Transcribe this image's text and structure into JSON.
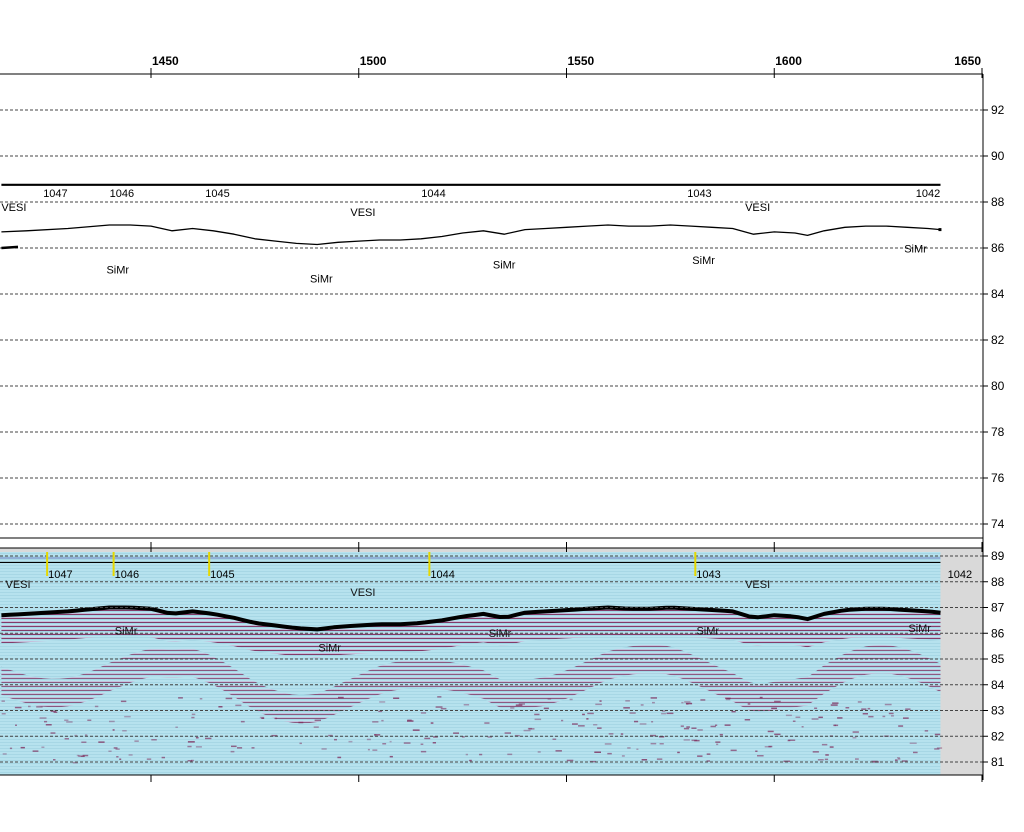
{
  "chart_data": [
    {
      "type": "line",
      "name": "profile-panel",
      "x_ticks": [
        1450,
        1500,
        1550,
        1600,
        1650
      ],
      "y_ticks": [
        92,
        90,
        88,
        86,
        84,
        82,
        80,
        78,
        76,
        74
      ],
      "xlim": [
        1414,
        1650
      ],
      "ylim": [
        73,
        94
      ],
      "grid": "horizontal dashed",
      "series": [
        {
          "role": "water-surface",
          "x": [
            1414,
            1640
          ],
          "y": [
            88.75,
            88.75
          ]
        },
        {
          "role": "bottom",
          "x": [
            1414,
            1420,
            1430,
            1440,
            1445,
            1450,
            1455,
            1460,
            1465,
            1470,
            1475,
            1480,
            1485,
            1490,
            1495,
            1500,
            1505,
            1510,
            1515,
            1520,
            1525,
            1530,
            1535,
            1540,
            1545,
            1550,
            1555,
            1560,
            1565,
            1570,
            1575,
            1580,
            1585,
            1590,
            1595,
            1600,
            1605,
            1608,
            1612,
            1617,
            1622,
            1627,
            1632,
            1637,
            1640
          ],
          "y": [
            86.7,
            86.75,
            86.85,
            87.0,
            87.0,
            86.95,
            86.75,
            86.85,
            86.75,
            86.6,
            86.4,
            86.3,
            86.2,
            86.15,
            86.25,
            86.3,
            86.35,
            86.35,
            86.4,
            86.5,
            86.65,
            86.75,
            86.6,
            86.8,
            86.85,
            86.9,
            86.95,
            87.0,
            86.95,
            86.95,
            87.0,
            86.95,
            86.9,
            86.85,
            86.6,
            86.7,
            86.65,
            86.55,
            86.75,
            86.9,
            86.95,
            86.95,
            86.9,
            86.85,
            86.8
          ]
        },
        {
          "role": "left-fragment",
          "x": [
            1414,
            1418
          ],
          "y": [
            86.0,
            86.05
          ]
        }
      ],
      "station_labels": [
        {
          "text": "1047",
          "x": 1427
        },
        {
          "text": "1046",
          "x": 1443
        },
        {
          "text": "1045",
          "x": 1466
        },
        {
          "text": "1044",
          "x": 1518
        },
        {
          "text": "1043",
          "x": 1582
        },
        {
          "text": "1042",
          "x": 1637
        }
      ],
      "layer_labels": [
        {
          "text": "VESI",
          "x": 1417,
          "y": 87.6
        },
        {
          "text": "VESI",
          "x": 1501,
          "y": 87.4
        },
        {
          "text": "VESI",
          "x": 1596,
          "y": 87.6
        },
        {
          "text": "SiMr",
          "x": 1442,
          "y": 84.9
        },
        {
          "text": "SiMr",
          "x": 1491,
          "y": 84.5
        },
        {
          "text": "SiMr",
          "x": 1535,
          "y": 85.1
        },
        {
          "text": "SiMr",
          "x": 1583,
          "y": 85.3
        },
        {
          "text": "SiMr",
          "x": 1634,
          "y": 85.8
        }
      ]
    },
    {
      "type": "heatmap",
      "name": "sonar-panel",
      "y_ticks": [
        89,
        88,
        87,
        86,
        85,
        84,
        83,
        82,
        81
      ],
      "ylim": [
        80.6,
        89.3
      ],
      "station_labels": [
        {
          "text": "1047",
          "x": 1425
        },
        {
          "text": "1046",
          "x": 1441
        },
        {
          "text": "1045",
          "x": 1464
        },
        {
          "text": "1044",
          "x": 1517
        },
        {
          "text": "1043",
          "x": 1581
        },
        {
          "text": "1042",
          "x": 1641
        }
      ],
      "layer_labels": [
        {
          "text": "VESI",
          "x": 1418,
          "y": 87.75
        },
        {
          "text": "VESI",
          "x": 1501,
          "y": 87.45
        },
        {
          "text": "VESI",
          "x": 1596,
          "y": 87.75
        },
        {
          "text": "SiMr",
          "x": 1444,
          "y": 85.95
        },
        {
          "text": "SiMr",
          "x": 1493,
          "y": 85.3
        },
        {
          "text": "SiMr",
          "x": 1534,
          "y": 85.85
        },
        {
          "text": "SiMr",
          "x": 1584,
          "y": 85.95
        },
        {
          "text": "SiMr",
          "x": 1635,
          "y": 86.05
        }
      ]
    }
  ],
  "colors": {
    "background": "#ffffff",
    "axis": "#000000",
    "grid": "#444444",
    "sonar_water": "#b6e2ee",
    "sonar_reflector": "#7a1f52",
    "sonar_margin": "#d9d9d9",
    "station_marker": "#e6d800"
  }
}
